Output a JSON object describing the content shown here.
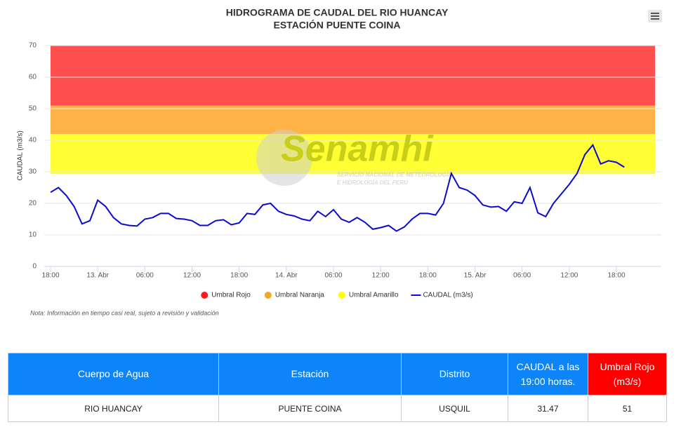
{
  "chart_data": {
    "type": "line",
    "title": "HIDROGRAMA DE CAUDAL DEL RIO HUANCAY",
    "subtitle": "ESTACIÓN PUENTE COINA",
    "y_label": "CAUDAL (m3/s)",
    "note": "Nota: Información en tiempo casi real, sujeto a revisión y validación",
    "watermark": {
      "brand": "Senamhi",
      "line1": "SERVICIO NACIONAL DE METEOROLOGÍA",
      "line2": "E HIDROLOGÍA DEL PERÚ"
    },
    "categories": [
      "18:00",
      null,
      null,
      null,
      null,
      null,
      "13. Abr",
      null,
      null,
      null,
      null,
      null,
      "06:00",
      null,
      null,
      null,
      null,
      null,
      "12:00",
      null,
      null,
      null,
      null,
      null,
      "18:00",
      null,
      null,
      null,
      null,
      null,
      "14. Abr",
      null,
      null,
      null,
      null,
      null,
      "06:00",
      null,
      null,
      null,
      null,
      null,
      "12:00",
      null,
      null,
      null,
      null,
      null,
      "18:00",
      null,
      null,
      null,
      null,
      null,
      "15. Abr",
      null,
      null,
      null,
      null,
      null,
      "06:00",
      null,
      null,
      null,
      null,
      null,
      "12:00",
      null,
      null,
      null,
      null,
      null,
      "18:00",
      null
    ],
    "thresholds": [
      {
        "name": "Umbral Rojo",
        "color": "#ff5050",
        "legend_color": "#ff1a1a",
        "from": 51,
        "to": 70
      },
      {
        "name": "Umbral Naranja",
        "color": "#ffb347",
        "legend_color": "#f5a623",
        "from": 42,
        "to": 51
      },
      {
        "name": "Umbral Amarillo",
        "color": "#ffff33",
        "legend_color": "#ffff00",
        "from": 29.3,
        "to": 42
      }
    ],
    "series": [
      {
        "name": "CAUDAL (m3/s)",
        "color": "#0a0ad0",
        "values": [
          23.5,
          25,
          22.5,
          19,
          13.5,
          14.5,
          21,
          19,
          15.5,
          13.5,
          13,
          12.8,
          15,
          15.5,
          16.8,
          16.8,
          15.2,
          15,
          14.5,
          13,
          13,
          14.5,
          14.8,
          13.2,
          13.8,
          16.8,
          16.5,
          19.5,
          20,
          17.5,
          16.5,
          16,
          15,
          14.5,
          17.5,
          15.8,
          18,
          15,
          14,
          15.5,
          14,
          11.8,
          12.3,
          13,
          11.2,
          12.5,
          15,
          16.8,
          16.8,
          16.3,
          20,
          29.5,
          25,
          24.2,
          22.5,
          19.5,
          18.8,
          19,
          17.5,
          20.5,
          20,
          25,
          17,
          15.8,
          20,
          23,
          26,
          29.5,
          35.5,
          38.5,
          32.5,
          33.5,
          33,
          31.47
        ]
      }
    ],
    "ylim": [
      0,
      70
    ],
    "yticks": [
      0,
      10,
      20,
      30,
      40,
      50,
      60,
      70
    ],
    "grid": true
  },
  "table": {
    "header": [
      "Cuerpo de Agua",
      "Estación",
      "Distrito",
      "CAUDAL a las 19:00 horas.",
      "Umbral Rojo (m3/s)"
    ],
    "rows": [
      [
        "RIO HUANCAY",
        "PUENTE COINA",
        "USQUIL",
        "31.47",
        "51"
      ]
    ]
  }
}
